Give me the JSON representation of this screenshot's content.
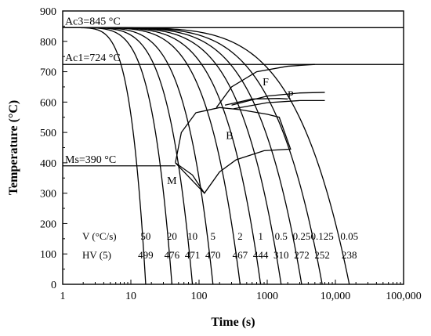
{
  "chart_data": {
    "type": "line",
    "xscale": "log",
    "xlabel": "Time (s)",
    "ylabel": "Temperature (°C)",
    "xlim": [
      1,
      100000
    ],
    "ylim": [
      0,
      900
    ],
    "x_ticks": [
      {
        "value": 1,
        "label": "1"
      },
      {
        "value": 10,
        "label": "10"
      },
      {
        "value": 100,
        "label": "100"
      },
      {
        "value": 1000,
        "label": "1000"
      },
      {
        "value": 10000,
        "label": "10,000"
      },
      {
        "value": 100000,
        "label": "100,000"
      }
    ],
    "y_ticks": [
      0,
      100,
      200,
      300,
      400,
      500,
      600,
      700,
      800,
      900
    ],
    "reference_lines": [
      {
        "label": "Ac3=845 °C",
        "y": 845,
        "x_from": 1,
        "x_to": 100000
      },
      {
        "label": "Ac1=724 °C",
        "y": 724,
        "x_from": 1,
        "x_to": 100000
      },
      {
        "label": "Ms=390 °C",
        "y": 390,
        "x_from": 1,
        "x_to": 45
      }
    ],
    "cooling_rate_header": "V (°C/s)",
    "hardness_header": "HV (5)",
    "cooling_curves": [
      {
        "rate": "50",
        "hv": "499",
        "t_end": 16.5
      },
      {
        "rate": "20",
        "hv": "476",
        "t_end": 40
      },
      {
        "rate": "10",
        "hv": "471",
        "t_end": 80
      },
      {
        "rate": "5",
        "hv": "470",
        "t_end": 160
      },
      {
        "rate": "2",
        "hv": "467",
        "t_end": 400
      },
      {
        "rate": "1",
        "hv": "444",
        "t_end": 800
      },
      {
        "rate": "0.5",
        "hv": "310",
        "t_end": 1600
      },
      {
        "rate": "0.25",
        "hv": "272",
        "t_end": 3200
      },
      {
        "rate": "0.125",
        "hv": "252",
        "t_end": 6400
      },
      {
        "rate": "0.05",
        "hv": "238",
        "t_end": 16000
      }
    ],
    "regions": [
      {
        "label": "F",
        "label_at": [
          950,
          655
        ],
        "boundaries": [
          [
            [
              180,
              582
            ],
            [
              300,
              650
            ],
            [
              700,
              700
            ],
            [
              2000,
              718
            ],
            [
              5000,
              724
            ]
          ],
          [
            [
              240,
              590
            ],
            [
              600,
              610
            ],
            [
              1500,
              612
            ],
            [
              2000,
              610
            ]
          ]
        ]
      },
      {
        "label": "P",
        "label_at": [
          2200,
          612
        ],
        "boundaries": [
          [
            [
              300,
              590
            ],
            [
              1000,
              620
            ],
            [
              3000,
              630
            ],
            [
              7000,
              632
            ]
          ],
          [
            [
              320,
              578
            ],
            [
              1000,
              598
            ],
            [
              3000,
              605
            ],
            [
              7000,
              605
            ]
          ]
        ]
      },
      {
        "label": "B",
        "label_at": [
          280,
          478
        ],
        "boundaries": [
          [
            [
              45,
              400
            ],
            [
              55,
              500
            ],
            [
              90,
              565
            ],
            [
              200,
              582
            ],
            [
              400,
              575
            ],
            [
              1000,
              560
            ],
            [
              1500,
              550
            ],
            [
              2200,
              445
            ],
            [
              900,
              440
            ],
            [
              350,
              410
            ],
            [
              200,
              370
            ],
            [
              120,
              300
            ],
            [
              80,
              360
            ],
            [
              45,
              400
            ]
          ]
        ]
      },
      {
        "label": "M",
        "label_at": [
          40,
          330
        ],
        "boundaries": [
          [
            [
              45,
              400
            ],
            [
              120,
              300
            ]
          ]
        ]
      }
    ]
  }
}
